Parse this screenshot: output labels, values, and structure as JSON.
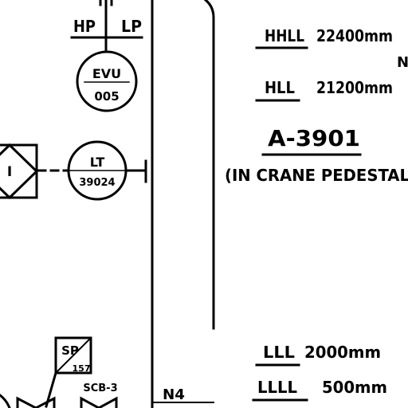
{
  "instruments": {
    "hp_label": "HP",
    "lp_label": "LP",
    "ev_tag": "EVU",
    "ev_number": "005",
    "lt_tag": "LT",
    "lt_number": "39024",
    "interlock_label": "I",
    "sp_tag": "SP",
    "sp_number": "157",
    "valve_label": "SCB-3"
  },
  "levels": {
    "hhll_label": "HHLL",
    "hhll_value": "22400mm",
    "hll_label": "HLL",
    "hll_value": "21200mm",
    "lll_label": "LLL",
    "lll_value": "2000mm",
    "llll_label": "LLLL",
    "llll_value": "500mm",
    "edge_letter": "N"
  },
  "vessel": {
    "tag": "A-3901",
    "location_note": "(IN CRANE PEDESTAL"
  },
  "nozzle": {
    "label": "N4"
  }
}
